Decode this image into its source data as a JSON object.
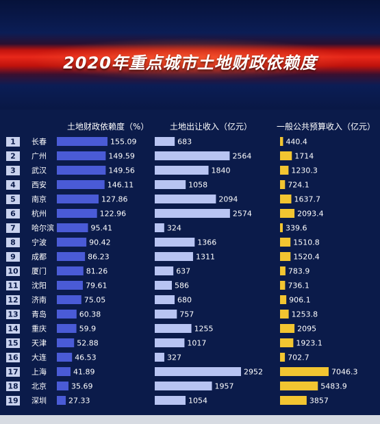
{
  "title": "2020年重点城市土地财政依赖度",
  "colors": {
    "dependency_bar": "#4a5bd6",
    "land_revenue_bar": "#b8c4f2",
    "budget_revenue_bar": "#f2c531",
    "rank_badge": "#c9d2ee"
  },
  "chart_data": {
    "type": "bar",
    "orientation": "horizontal",
    "categories": [
      "长春",
      "广州",
      "武汉",
      "西安",
      "南京",
      "杭州",
      "哈尔滨",
      "宁波",
      "成都",
      "厦门",
      "沈阳",
      "济南",
      "青岛",
      "重庆",
      "天津",
      "大连",
      "上海",
      "北京",
      "深圳"
    ],
    "ranks": [
      "1",
      "2",
      "3",
      "4",
      "5",
      "6",
      "7",
      "8",
      "9",
      "10",
      "11",
      "12",
      "13",
      "14",
      "15",
      "16",
      "17",
      "18",
      "19"
    ],
    "series": [
      {
        "name": "土地财政依赖度（%）",
        "values": [
          155.09,
          149.59,
          149.56,
          146.11,
          127.86,
          122.96,
          95.41,
          90.42,
          86.23,
          81.26,
          79.61,
          75.05,
          60.38,
          59.9,
          52.88,
          46.53,
          41.89,
          35.69,
          27.33
        ],
        "labels": [
          "155.09",
          "149.59",
          "149.56",
          "146.11",
          "127.86",
          "122.96",
          "95.41",
          "90.42",
          "86.23",
          "81.26",
          "79.61",
          "75.05",
          "60.38",
          "59.9",
          "52.88",
          "46.53",
          "41.89",
          "35.69",
          "27.33"
        ]
      },
      {
        "name": "土地出让收入（亿元）",
        "values": [
          683,
          2564,
          1840,
          1058,
          2094,
          2574,
          324,
          1366,
          1311,
          637,
          586,
          680,
          757,
          1255,
          1017,
          327,
          2952,
          1957,
          1054
        ],
        "labels": [
          "683",
          "2564",
          "1840",
          "1058",
          "2094",
          "2574",
          "324",
          "1366",
          "1311",
          "637",
          "586",
          "680",
          "757",
          "1255",
          "1017",
          "327",
          "2952",
          "1957",
          "1054"
        ]
      },
      {
        "name": "一般公共预算收入（亿元）",
        "values": [
          440.4,
          1714,
          1230.3,
          724.1,
          1637.7,
          2093.4,
          339.6,
          1510.8,
          1520.4,
          783.9,
          736.1,
          906.1,
          1253.8,
          2095,
          1923.1,
          702.7,
          7046.3,
          5483.9,
          3857
        ],
        "labels": [
          "440.4",
          "1714",
          "1230.3",
          "724.1",
          "1637.7",
          "2093.4",
          "339.6",
          "1510.8",
          "1520.4",
          "783.9",
          "736.1",
          "906.1",
          "1253.8",
          "2095",
          "1923.1",
          "702.7",
          "7046.3",
          "5483.9",
          "3857"
        ]
      }
    ]
  }
}
